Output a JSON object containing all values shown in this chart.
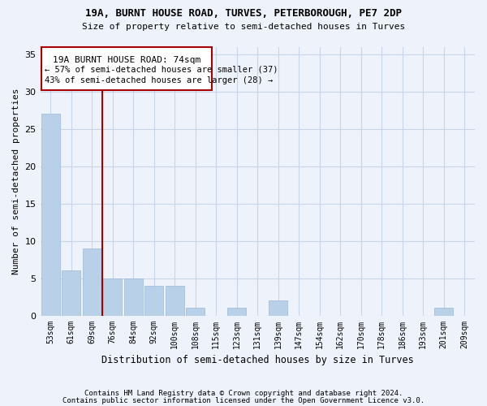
{
  "title1": "19A, BURNT HOUSE ROAD, TURVES, PETERBOROUGH, PE7 2DP",
  "title2": "Size of property relative to semi-detached houses in Turves",
  "xlabel": "Distribution of semi-detached houses by size in Turves",
  "ylabel": "Number of semi-detached properties",
  "footer1": "Contains HM Land Registry data © Crown copyright and database right 2024.",
  "footer2": "Contains public sector information licensed under the Open Government Licence v3.0.",
  "bin_labels": [
    "53sqm",
    "61sqm",
    "69sqm",
    "76sqm",
    "84sqm",
    "92sqm",
    "100sqm",
    "108sqm",
    "115sqm",
    "123sqm",
    "131sqm",
    "139sqm",
    "147sqm",
    "154sqm",
    "162sqm",
    "170sqm",
    "178sqm",
    "186sqm",
    "193sqm",
    "201sqm",
    "209sqm"
  ],
  "bar_values": [
    27,
    6,
    9,
    5,
    5,
    4,
    4,
    1,
    0,
    1,
    0,
    2,
    0,
    0,
    0,
    0,
    0,
    0,
    0,
    1,
    0
  ],
  "bar_color": "#b8d0e8",
  "bar_edge_color": "#9ab8d8",
  "grid_color": "#c8d4e8",
  "vline_x": 2.5,
  "vline_color": "#aa0000",
  "annotation_title": "19A BURNT HOUSE ROAD: 74sqm",
  "annotation_line1": "← 57% of semi-detached houses are smaller (37)",
  "annotation_line2": "43% of semi-detached houses are larger (28) →",
  "ylim": [
    0,
    36
  ],
  "yticks": [
    0,
    5,
    10,
    15,
    20,
    25,
    30,
    35
  ],
  "background_color": "#eef2fa"
}
